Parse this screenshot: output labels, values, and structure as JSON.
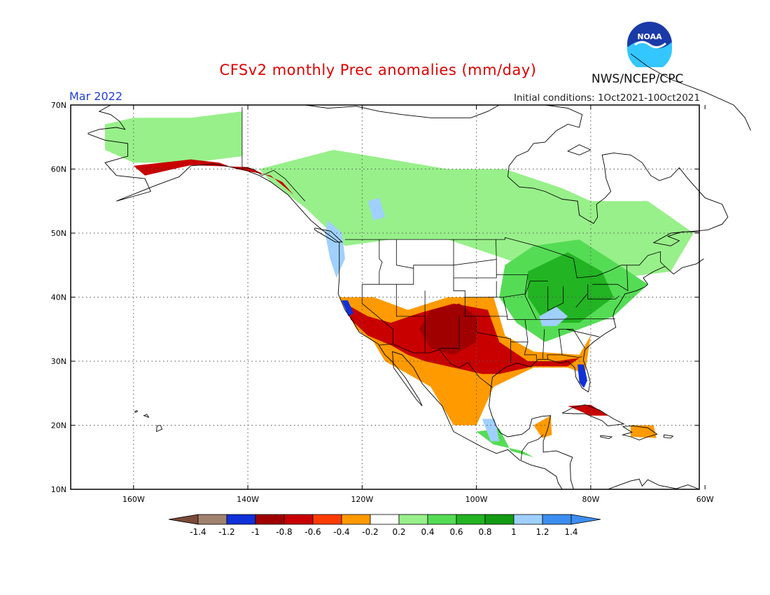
{
  "header": {
    "title": "CFSv2 monthly Prec anomalies (mm/day)",
    "month": "Mar 2022",
    "initial_conditions": "Initial conditions: 1Oct2021-10Oct2021",
    "agency": "NWS/NCEP/CPC",
    "logo_text": "NOAA"
  },
  "map": {
    "lat_labels": [
      "70N",
      "60N",
      "50N",
      "40N",
      "30N",
      "20N",
      "10N"
    ],
    "lat_values": [
      70,
      60,
      50,
      40,
      30,
      20,
      10
    ],
    "lon_labels": [
      "160W",
      "140W",
      "120W",
      "100W",
      "80W",
      "60W"
    ],
    "lon_values": [
      -160,
      -140,
      -120,
      -100,
      -80,
      -60
    ],
    "lon_range": [
      -171,
      -61
    ],
    "lat_range": [
      10,
      70
    ]
  },
  "legend": {
    "tick_labels": [
      "-1.4",
      "-1.2",
      "-1",
      "-0.8",
      "-0.6",
      "-0.4",
      "-0.2",
      "0.2",
      "0.4",
      "0.6",
      "0.8",
      "1",
      "1.2",
      "1.4"
    ],
    "colors": [
      "#7a4a3a",
      "#a0826e",
      "#1030d8",
      "#a00000",
      "#c80000",
      "#ff3c00",
      "#ff9a00",
      "#ffffff",
      "#98f08a",
      "#55dc55",
      "#22b422",
      "#129b12",
      "#a0d0ff",
      "#3c8ef0",
      "#3c8ef0"
    ]
  },
  "regions": {
    "alaska_green": {
      "class": "0.2",
      "polys": [
        [
          [
            -165,
            67
          ],
          [
            -160,
            68
          ],
          [
            -150,
            68
          ],
          [
            -141,
            69
          ],
          [
            -141,
            62
          ],
          [
            -150,
            61
          ],
          [
            -160,
            61
          ],
          [
            -165,
            63
          ]
        ]
      ]
    },
    "canada_green": {
      "class": "0.2",
      "polys": [
        [
          [
            -138,
            60
          ],
          [
            -125,
            63
          ],
          [
            -105,
            60
          ],
          [
            -95,
            60
          ],
          [
            -85,
            57
          ],
          [
            -80,
            55
          ],
          [
            -70,
            55
          ],
          [
            -62,
            50
          ],
          [
            -66,
            44
          ],
          [
            -75,
            43
          ],
          [
            -83,
            42
          ],
          [
            -95,
            46
          ],
          [
            -105,
            49
          ],
          [
            -115,
            49
          ],
          [
            -123,
            48
          ],
          [
            -130,
            54
          ],
          [
            -136,
            58
          ]
        ]
      ]
    },
    "east_green": {
      "class": "0.4",
      "polys": [
        [
          [
            -95,
            45
          ],
          [
            -90,
            48
          ],
          [
            -82,
            49
          ],
          [
            -75,
            45
          ],
          [
            -70,
            42
          ],
          [
            -76,
            37
          ],
          [
            -82,
            35
          ],
          [
            -88,
            33
          ],
          [
            -93,
            36
          ],
          [
            -96,
            40
          ]
        ]
      ]
    },
    "east_green2": {
      "class": "0.6",
      "polys": [
        [
          [
            -91,
            44
          ],
          [
            -84,
            47
          ],
          [
            -78,
            44
          ],
          [
            -76,
            40
          ],
          [
            -82,
            36
          ],
          [
            -88,
            36
          ],
          [
            -91,
            40
          ]
        ]
      ]
    },
    "ohio_blue": {
      "class": "1.2",
      "polys": [
        [
          [
            -89,
            37
          ],
          [
            -86,
            38.5
          ],
          [
            -84,
            37
          ],
          [
            -86,
            35.5
          ],
          [
            -88.5,
            35.5
          ]
        ]
      ]
    },
    "sw_orange": {
      "class": "-0.4",
      "polys": [
        [
          [
            -124,
            40
          ],
          [
            -118,
            40
          ],
          [
            -112,
            38
          ],
          [
            -105,
            40
          ],
          [
            -97,
            40
          ],
          [
            -95,
            34
          ],
          [
            -90,
            31.5
          ],
          [
            -82,
            31
          ],
          [
            -80,
            34
          ],
          [
            -81,
            28
          ],
          [
            -84,
            29
          ],
          [
            -90,
            29
          ],
          [
            -97,
            26
          ],
          [
            -100,
            20
          ],
          [
            -104,
            20
          ],
          [
            -108,
            26
          ],
          [
            -112,
            28
          ],
          [
            -116,
            30
          ],
          [
            -118,
            33
          ],
          [
            -121,
            35
          ]
        ]
      ]
    },
    "sw_red": {
      "class": "-0.8",
      "polys": [
        [
          [
            -123,
            39
          ],
          [
            -119,
            37
          ],
          [
            -115,
            36
          ],
          [
            -110,
            37.5
          ],
          [
            -104,
            39
          ],
          [
            -98,
            38
          ],
          [
            -96,
            33
          ],
          [
            -91,
            30
          ],
          [
            -86,
            30
          ],
          [
            -82,
            30.5
          ],
          [
            -84,
            29.2
          ],
          [
            -90,
            29.2
          ],
          [
            -96,
            28
          ],
          [
            -99,
            28
          ],
          [
            -104,
            29
          ],
          [
            -109,
            30
          ],
          [
            -112,
            31
          ],
          [
            -115,
            32.5
          ],
          [
            -119,
            34
          ],
          [
            -122,
            36.5
          ]
        ]
      ]
    },
    "sw_darkred": {
      "class": "-1",
      "polys": [
        [
          [
            -108,
            38
          ],
          [
            -103,
            39
          ],
          [
            -100,
            37
          ],
          [
            -100,
            33
          ],
          [
            -104,
            31
          ],
          [
            -108,
            32
          ],
          [
            -110,
            35
          ]
        ]
      ]
    },
    "fl_blue": {
      "class": "-1.2",
      "polys": [
        [
          [
            -82.3,
            29.5
          ],
          [
            -81.2,
            29.5
          ],
          [
            -80.6,
            27
          ],
          [
            -81.2,
            25.8
          ],
          [
            -82,
            26.7
          ]
        ]
      ]
    },
    "ca_blue": {
      "class": "-1.2",
      "polys": [
        [
          [
            -123.6,
            39.5
          ],
          [
            -122.5,
            39.5
          ],
          [
            -121.5,
            37.5
          ],
          [
            -122.4,
            37
          ]
        ]
      ]
    },
    "nw_blue": {
      "class": "1.2",
      "polys": [
        [
          [
            -126,
            52
          ],
          [
            -123.5,
            50
          ],
          [
            -123,
            46
          ],
          [
            -124.5,
            43
          ],
          [
            -125.6,
            46
          ],
          [
            -126.5,
            50
          ]
        ]
      ]
    },
    "bc_blue": {
      "class": "1.2",
      "polys": [
        [
          [
            -119,
            55
          ],
          [
            -117,
            55.5
          ],
          [
            -116,
            52.5
          ],
          [
            -118,
            52
          ]
        ]
      ]
    },
    "alaska_red": {
      "class": "-0.8",
      "polys": [
        [
          [
            -160,
            60.5
          ],
          [
            -150,
            61.5
          ],
          [
            -145,
            61
          ],
          [
            -142,
            60
          ],
          [
            -136,
            59
          ],
          [
            -132,
            56
          ],
          [
            -134,
            58
          ],
          [
            -140,
            60.3
          ],
          [
            -150,
            60.6
          ],
          [
            -158,
            59
          ]
        ]
      ]
    },
    "mexico_green": {
      "class": "0.4",
      "polys": [
        [
          [
            -100,
            19
          ],
          [
            -96,
            19.5
          ],
          [
            -94,
            16
          ],
          [
            -90,
            15
          ],
          [
            -86,
            13
          ],
          [
            -84,
            12
          ],
          [
            -88,
            14
          ],
          [
            -92,
            16
          ],
          [
            -97,
            17
          ]
        ]
      ]
    },
    "mexico_blue": {
      "class": "1.2",
      "polys": [
        [
          [
            -99,
            21
          ],
          [
            -96.8,
            21
          ],
          [
            -96,
            17.5
          ],
          [
            -97.5,
            17.5
          ]
        ]
      ]
    },
    "yucatan_orange": {
      "class": "-0.4",
      "polys": [
        [
          [
            -90,
            20
          ],
          [
            -87,
            21.5
          ],
          [
            -86.8,
            18.5
          ],
          [
            -88.5,
            18
          ]
        ]
      ]
    },
    "carib_orange": {
      "class": "-0.4",
      "polys": [
        [
          [
            -73,
            20
          ],
          [
            -69,
            20
          ],
          [
            -68.5,
            18
          ],
          [
            -73,
            18.2
          ]
        ]
      ]
    },
    "cuba_red": {
      "class": "-0.8",
      "polys": [
        [
          [
            -84,
            23
          ],
          [
            -80,
            23.2
          ],
          [
            -77,
            21.5
          ],
          [
            -80,
            21.5
          ]
        ]
      ]
    }
  }
}
